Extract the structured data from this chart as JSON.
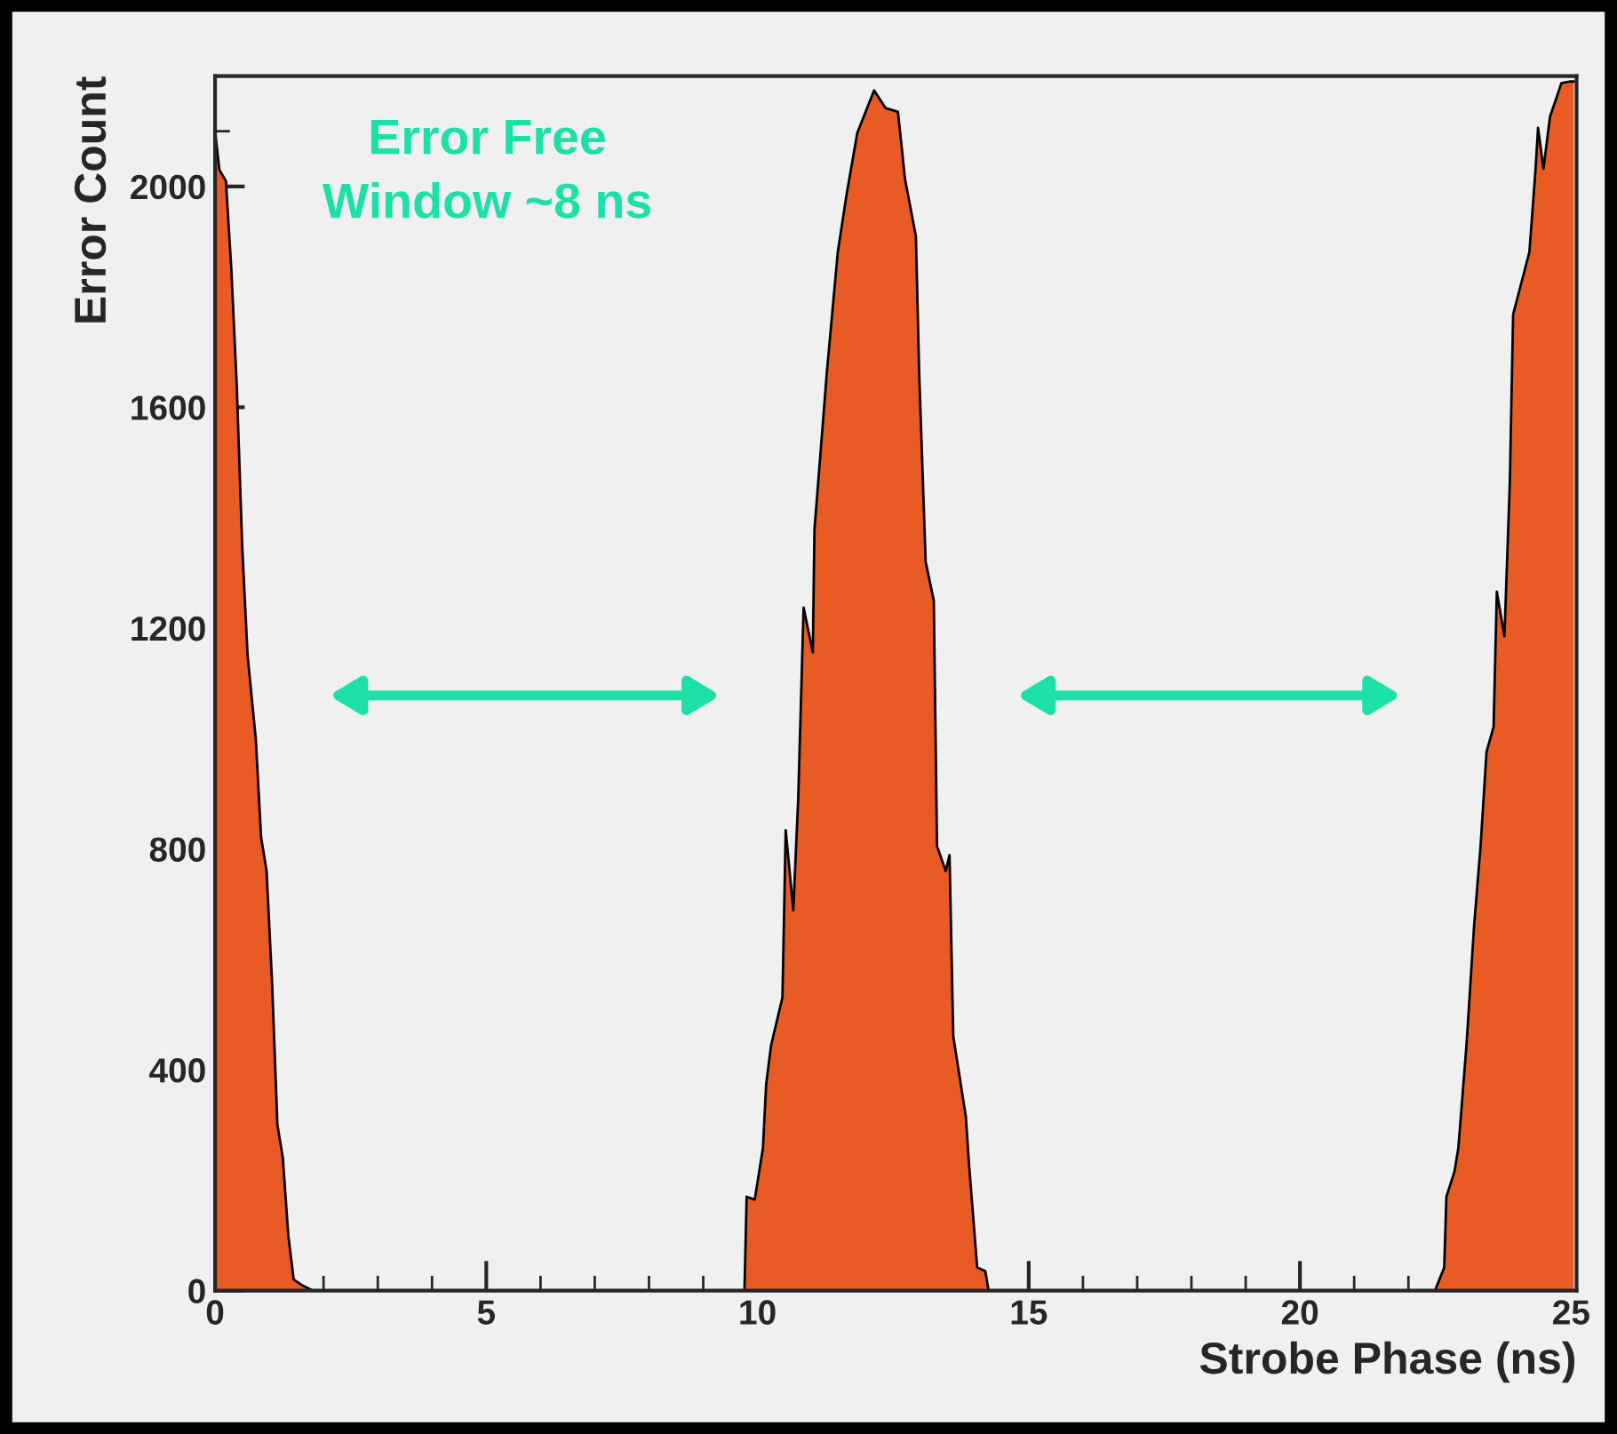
{
  "chart_data": {
    "type": "area",
    "xlabel": "Strobe Phase (ns)",
    "ylabel": "Error Count",
    "annotations": [
      "Error Free\nWindow ~8 ns"
    ],
    "xlim": [
      0,
      25.1
    ],
    "ylim": [
      0,
      2200
    ],
    "xticks": [
      0,
      5,
      10,
      15,
      20,
      25
    ],
    "yticks": [
      0,
      400,
      800,
      1200,
      1600,
      2000
    ],
    "grid": false,
    "legend": false,
    "series": [
      {
        "color": "#e95b24",
        "x": [
          0,
          0.08,
          0.2,
          0.3,
          0.4,
          0.5,
          0.6,
          0.75,
          0.85,
          0.95,
          1.05,
          1.15,
          1.25,
          1.35,
          1.45,
          1.6,
          1.8,
          9.76,
          9.8,
          9.95,
          10.1,
          10.16,
          10.25,
          10.46,
          10.52,
          10.66,
          10.75,
          10.85,
          11.02,
          11.05,
          11.28,
          11.48,
          11.64,
          11.84,
          12.15,
          12.36,
          12.59,
          12.72,
          12.92,
          12.98,
          13.1,
          13.25,
          13.31,
          13.47,
          13.54,
          13.61,
          13.84,
          13.9,
          14.05,
          14.2,
          14.26,
          22.49,
          22.66,
          22.7,
          22.85,
          22.92,
          23.07,
          23.21,
          23.33,
          23.44,
          23.57,
          23.63,
          23.77,
          23.87,
          23.93,
          24.23,
          24.34,
          24.39,
          24.49,
          24.61,
          24.82,
          24.97,
          25.05
        ],
        "values": [
          2100,
          2030,
          2010,
          1850,
          1640,
          1350,
          1150,
          1000,
          820,
          760,
          560,
          300,
          240,
          100,
          20,
          10,
          0,
          0,
          170,
          165,
          258,
          374,
          444,
          531,
          834,
          689,
          889,
          1237,
          1156,
          1378,
          1665,
          1881,
          1984,
          2097,
          2174,
          2142,
          2135,
          2013,
          1910,
          1665,
          1320,
          1250,
          805,
          760,
          789,
          460,
          316,
          229,
          42,
          35,
          0,
          0,
          42,
          170,
          216,
          258,
          444,
          660,
          805,
          976,
          1021,
          1266,
          1185,
          1465,
          1768,
          1881,
          2026,
          2106,
          2032,
          2126,
          2187,
          2190,
          2190
        ]
      }
    ]
  }
}
